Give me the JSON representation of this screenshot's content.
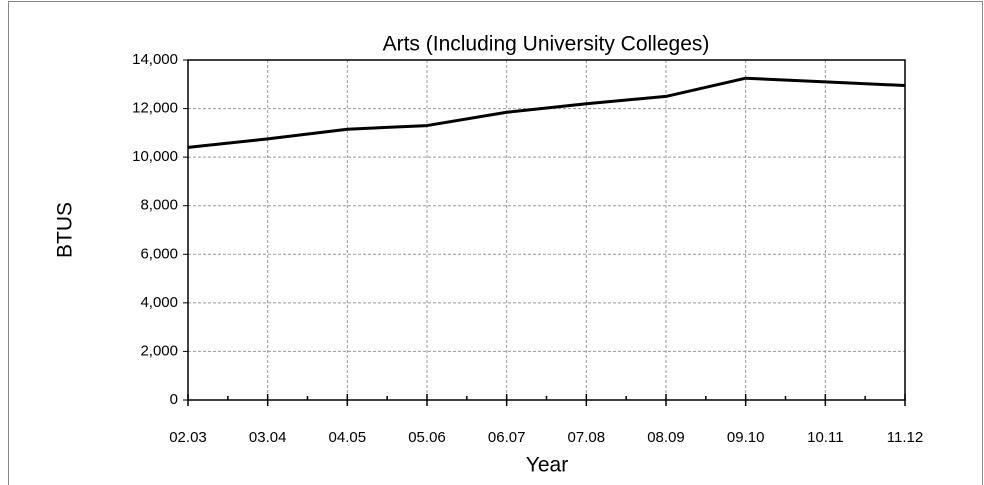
{
  "chart_data": {
    "type": "line",
    "title": "Arts (Including University Colleges)",
    "x_label": "Year",
    "y_label": "BTUS",
    "categories": [
      "02.03",
      "03.04",
      "04.05",
      "05.06",
      "06.07",
      "07.08",
      "08.09",
      "09.10",
      "10.11",
      "11.12"
    ],
    "series": [
      {
        "name": "Arts",
        "color": "#000000",
        "values": [
          10400,
          10750,
          11150,
          11300,
          11850,
          12200,
          12500,
          13250,
          13100,
          12950
        ]
      }
    ],
    "ylim": [
      0,
      14000
    ],
    "yticks": [
      0,
      {
        "value": 2000,
        "label": "2,000"
      },
      {
        "value": 4000,
        "label": "4,000"
      },
      {
        "value": 6000,
        "label": "6,000"
      },
      {
        "value": 8000,
        "label": "8,000"
      },
      {
        "value": 10000,
        "label": "10,000"
      },
      {
        "value": 12000,
        "label": "12,000"
      },
      {
        "value": 14000,
        "label": "14,000"
      }
    ],
    "grid": true,
    "legend": false
  }
}
